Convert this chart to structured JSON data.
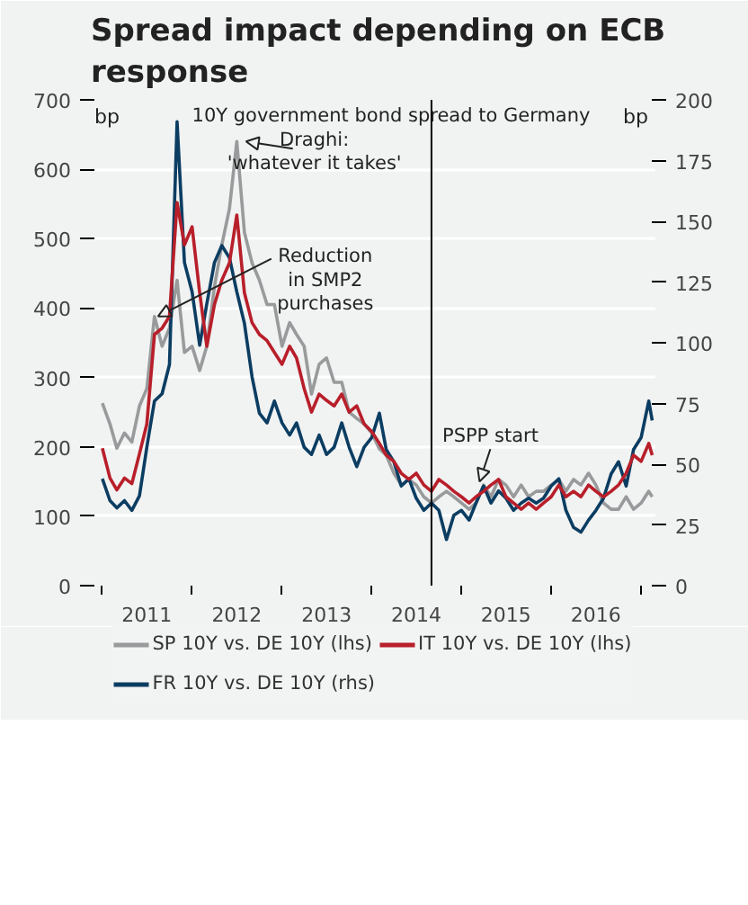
{
  "chart_data": {
    "type": "line",
    "title": "Spread impact depending on ECB response",
    "x": [
      "2011-01",
      "2011-02",
      "2011-03",
      "2011-04",
      "2011-05",
      "2011-06",
      "2011-07",
      "2011-08",
      "2011-09",
      "2011-10",
      "2011-11",
      "2011-12",
      "2012-01",
      "2012-02",
      "2012-03",
      "2012-04",
      "2012-05",
      "2012-06",
      "2012-07",
      "2012-08",
      "2012-09",
      "2012-10",
      "2012-11",
      "2012-12",
      "2013-01",
      "2013-02",
      "2013-03",
      "2013-04",
      "2013-05",
      "2013-06",
      "2013-07",
      "2013-08",
      "2013-09",
      "2013-10",
      "2013-11",
      "2013-12",
      "2014-01",
      "2014-02",
      "2014-03",
      "2014-04",
      "2014-05",
      "2014-06",
      "2014-07",
      "2014-08",
      "2014-09",
      "2014-10",
      "2014-11",
      "2014-12",
      "2015-01",
      "2015-02",
      "2015-03",
      "2015-04",
      "2015-05",
      "2015-06",
      "2015-07",
      "2015-08",
      "2015-09",
      "2015-10",
      "2015-11",
      "2015-12",
      "2016-01",
      "2016-02",
      "2016-03",
      "2016-04",
      "2016-05",
      "2016-06",
      "2016-07",
      "2016-08",
      "2016-09",
      "2016-10",
      "2016-11",
      "2016-12",
      "2017-01",
      "2017-02",
      "2017-02-15"
    ],
    "series": [
      {
        "name": "SP 10Y vs. DE 10Y (lhs)",
        "color": "#999a9c",
        "values": [
          263,
          233,
          198,
          220,
          207,
          259,
          284,
          388,
          345,
          371,
          440,
          336,
          345,
          310,
          345,
          431,
          491,
          543,
          640,
          509,
          465,
          440,
          405,
          405,
          345,
          379,
          362,
          345,
          276,
          319,
          328,
          293,
          293,
          250,
          241,
          233,
          220,
          197,
          188,
          162,
          145,
          153,
          145,
          128,
          119,
          128,
          136,
          128,
          119,
          110,
          119,
          145,
          128,
          153,
          145,
          128,
          145,
          128,
          136,
          136,
          145,
          153,
          136,
          153,
          145,
          162,
          145,
          119,
          110,
          110,
          128,
          110,
          119,
          136,
          128
        ]
      },
      {
        "name": "FR 10Y vs. DE 10Y (rhs)",
        "color": "#0b3d62",
        "axis": "y2",
        "values": [
          44,
          35,
          32,
          35,
          31,
          37,
          57,
          76,
          79,
          91,
          191,
          133,
          121,
          99,
          116,
          133,
          140,
          135,
          121,
          108,
          86,
          71,
          67,
          76,
          67,
          62,
          67,
          57,
          54,
          62,
          54,
          57,
          67,
          57,
          49,
          57,
          61,
          71,
          56,
          51,
          41,
          44,
          36,
          31,
          34,
          31,
          19,
          29,
          31,
          27,
          34,
          41,
          34,
          39,
          36,
          31,
          34,
          36,
          34,
          36,
          41,
          44,
          31,
          24,
          22,
          27,
          31,
          36,
          46,
          51,
          41,
          56,
          61,
          76,
          68
        ]
      },
      {
        "name": "IT 10Y vs. DE 10Y (lhs)",
        "color": "#b81f2a",
        "values": [
          198,
          155,
          138,
          155,
          147,
          190,
          233,
          362,
          371,
          388,
          552,
          491,
          517,
          422,
          345,
          405,
          440,
          465,
          534,
          422,
          379,
          362,
          353,
          336,
          319,
          345,
          328,
          284,
          250,
          276,
          267,
          259,
          276,
          250,
          259,
          233,
          222,
          205,
          188,
          179,
          162,
          153,
          162,
          145,
          136,
          153,
          145,
          136,
          128,
          119,
          128,
          136,
          145,
          153,
          128,
          119,
          110,
          119,
          110,
          119,
          128,
          145,
          128,
          136,
          128,
          145,
          136,
          128,
          136,
          145,
          162,
          188,
          179,
          205,
          188
        ]
      }
    ],
    "xlim": [
      "2010-11-15",
      "2017-02-28"
    ],
    "xticks": [
      {
        "value": "2011-01-01",
        "label": null
      },
      {
        "value": "2011-07-01",
        "label": "2011"
      },
      {
        "value": "2012-01-01",
        "label": null
      },
      {
        "value": "2012-07-01",
        "label": "2012"
      },
      {
        "value": "2013-01-01",
        "label": null
      },
      {
        "value": "2013-07-01",
        "label": "2013"
      },
      {
        "value": "2014-01-01",
        "label": null
      },
      {
        "value": "2014-07-01",
        "label": "2014"
      },
      {
        "value": "2015-01-01",
        "label": null
      },
      {
        "value": "2015-07-01",
        "label": "2015"
      },
      {
        "value": "2016-01-01",
        "label": null
      },
      {
        "value": "2016-07-01",
        "label": "2016"
      },
      {
        "value": "2017-01-01",
        "label": null
      }
    ],
    "ylim": [
      0,
      700
    ],
    "yticks": [
      0,
      100,
      200,
      300,
      400,
      500,
      600,
      700
    ],
    "y2lim": [
      0,
      200
    ],
    "y2ticks": [
      0,
      25,
      50,
      75,
      100,
      125,
      150,
      175,
      200
    ],
    "ylabel": "bp",
    "y2label": "bp",
    "ref_lines": [
      {
        "axis": "x",
        "value": "2014-09-01",
        "color": "#000000"
      }
    ],
    "annotations": [
      "10Y government bond spread to Germany",
      {
        "text": "Draghi:\n'whatever it takes'",
        "x": "2012-07-24",
        "y": 640
      },
      {
        "text": "Reduction\nin SMP2\npurchases",
        "x": "2011-08",
        "y": 388
      },
      {
        "text": "PSPP start",
        "x": "2015-03-01",
        "y": 150
      }
    ],
    "grid": "y",
    "legend": "bottom",
    "line_style": "solid"
  }
}
